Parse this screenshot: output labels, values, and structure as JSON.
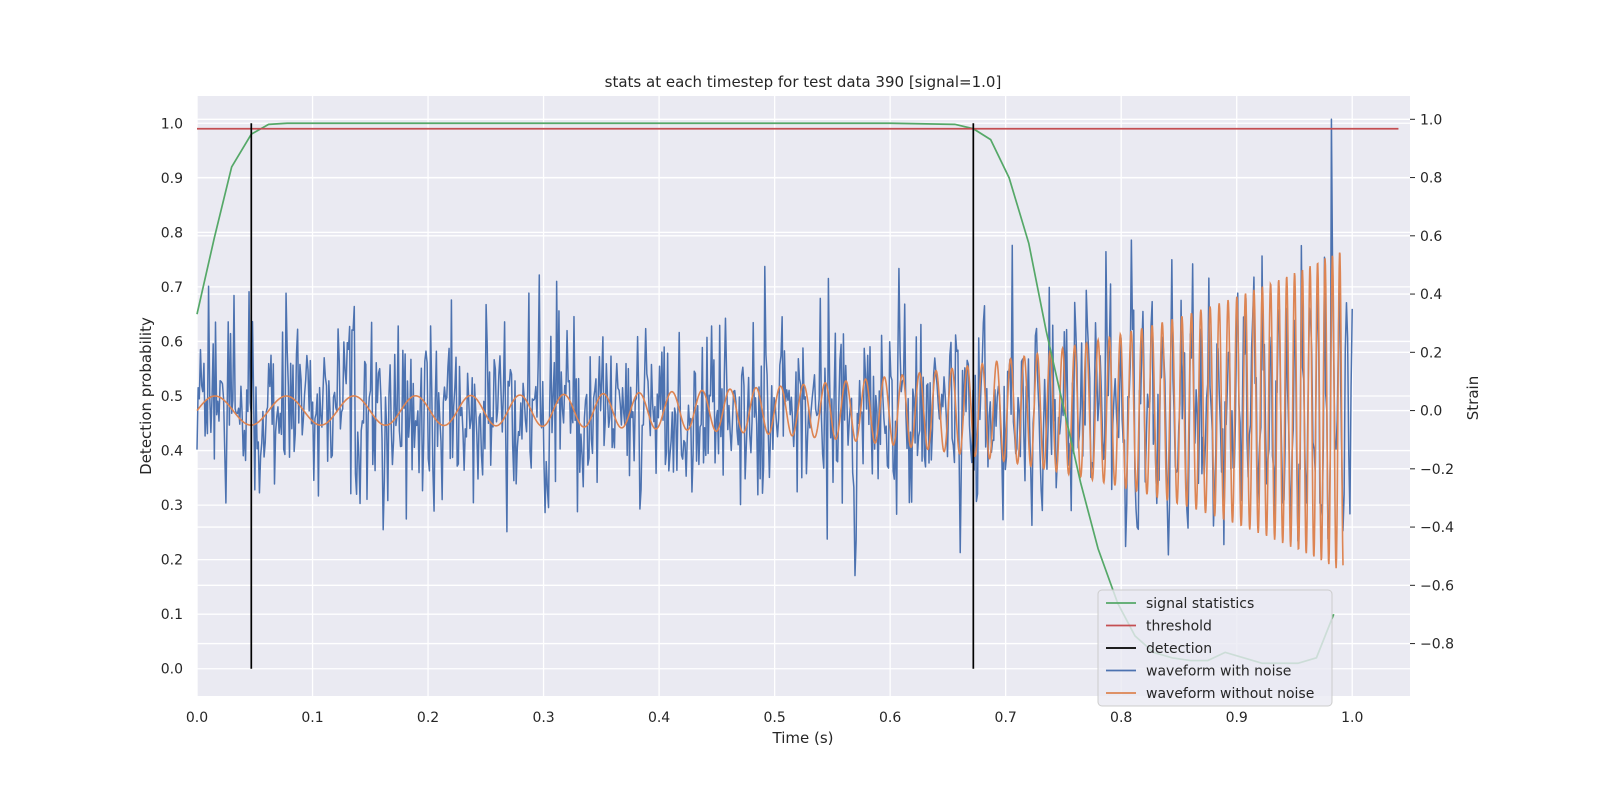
{
  "chart_data": {
    "type": "line",
    "title": "stats at each timestep for test data 390 [signal=1.0]",
    "xlabel": "Time (s)",
    "ylabel_left": "Detection probability",
    "ylabel_right": "Strain",
    "xlim": [
      0.0,
      1.05
    ],
    "ylim_left": [
      -0.05,
      1.05
    ],
    "ylim_right": [
      -0.98,
      1.08
    ],
    "x_ticks": [
      "0.0",
      "0.1",
      "0.2",
      "0.3",
      "0.4",
      "0.5",
      "0.6",
      "0.7",
      "0.8",
      "0.9",
      "1.0"
    ],
    "y_ticks_left": [
      "0.0",
      "0.1",
      "0.2",
      "0.3",
      "0.4",
      "0.5",
      "0.6",
      "0.7",
      "0.8",
      "0.9",
      "1.0"
    ],
    "y_ticks_right": [
      "−0.8",
      "−0.6",
      "−0.4",
      "−0.2",
      "0.0",
      "0.2",
      "0.4",
      "0.6",
      "0.8",
      "1.0"
    ],
    "grid": true,
    "legend_position": "lower-right",
    "colors": {
      "signal": "#55a868",
      "threshold": "#c44e52",
      "detection": "#000000",
      "noisy": "#4c72b0",
      "clean": "#dd8452",
      "background": "#eaeaf2",
      "grid": "#ffffff"
    },
    "legend": [
      "signal statistics",
      "threshold",
      "detection",
      "waveform with noise",
      "waveform without noise"
    ],
    "series": [
      {
        "name": "signal statistics",
        "axis": "left",
        "x": [
          0.0,
          0.015,
          0.03,
          0.047,
          0.062,
          0.078,
          0.1,
          0.2,
          0.3,
          0.4,
          0.5,
          0.6,
          0.656,
          0.672,
          0.687,
          0.703,
          0.72,
          0.735,
          0.75,
          0.765,
          0.78,
          0.797,
          0.812,
          0.828,
          0.844,
          0.86,
          0.875,
          0.89,
          0.906,
          0.922,
          0.938,
          0.953,
          0.969,
          0.984
        ],
        "y": [
          0.65,
          0.79,
          0.92,
          0.98,
          0.998,
          1.0,
          1.0,
          1.0,
          1.0,
          1.0,
          1.0,
          1.0,
          0.998,
          0.99,
          0.97,
          0.9,
          0.78,
          0.62,
          0.48,
          0.34,
          0.22,
          0.12,
          0.06,
          0.03,
          0.02,
          0.015,
          0.015,
          0.03,
          0.02,
          0.01,
          0.01,
          0.01,
          0.02,
          0.1
        ]
      },
      {
        "name": "threshold",
        "axis": "left",
        "x": [
          0.0,
          1.04
        ],
        "y": [
          0.99,
          0.99
        ]
      },
      {
        "name": "detection",
        "axis": "left",
        "x": [
          0.047,
          0.672
        ],
        "y_range": [
          0.0,
          1.0
        ]
      },
      {
        "name": "waveform with noise",
        "axis": "right",
        "x_range": [
          0.0,
          1.0
        ],
        "samples": 1000,
        "std": 0.17,
        "seed": 390,
        "peak": {
          "x": 0.982,
          "y": 1.0
        }
      },
      {
        "name": "waveform without noise",
        "axis": "right",
        "x_range": [
          0.0,
          1.0
        ],
        "amplitude_start": 0.05,
        "amplitude_end": 0.57,
        "freq_start_hz": 16,
        "freq_end_hz": 62,
        "end_x": 0.992
      }
    ]
  }
}
